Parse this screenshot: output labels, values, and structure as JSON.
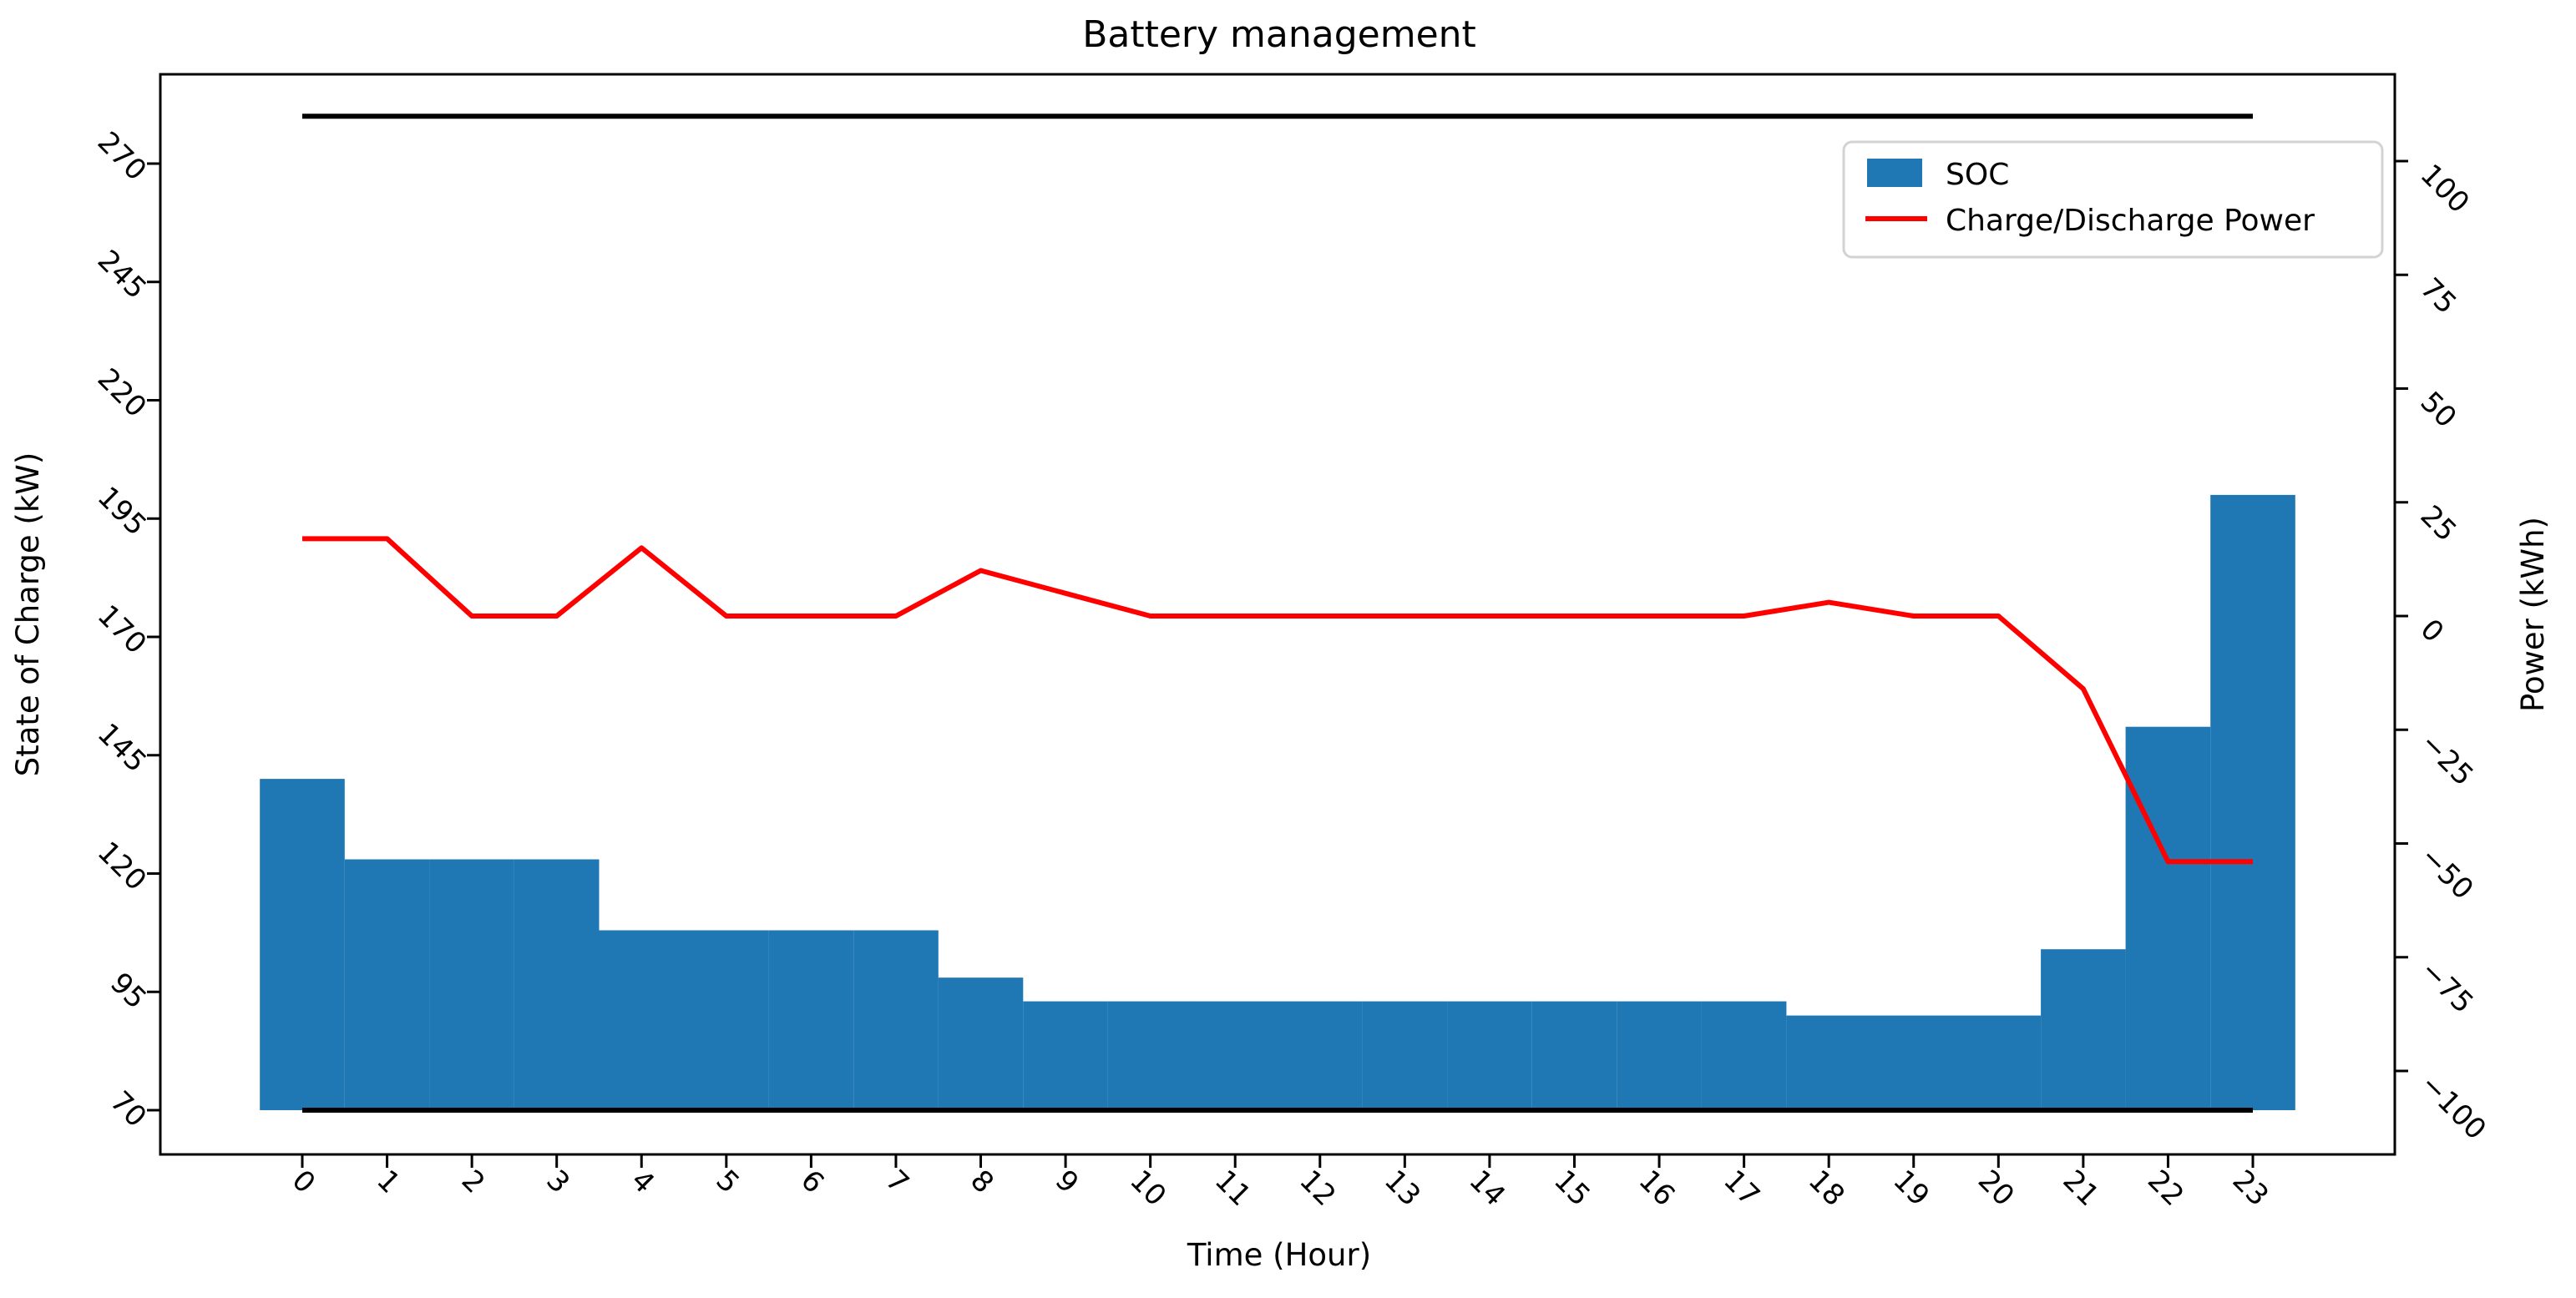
{
  "title": "Battery management",
  "x_axis": {
    "label": "Time (Hour)",
    "tick_labels": [
      "0",
      "1",
      "2",
      "3",
      "4",
      "5",
      "6",
      "7",
      "8",
      "9",
      "10",
      "11",
      "12",
      "13",
      "14",
      "15",
      "16",
      "17",
      "18",
      "19",
      "20",
      "21",
      "22",
      "23"
    ]
  },
  "y_axis_left": {
    "label": "State of Charge (kW)",
    "tick_labels": [
      "70",
      "95",
      "120",
      "145",
      "170",
      "195",
      "220",
      "245",
      "270"
    ],
    "tick_values": [
      70,
      95,
      120,
      145,
      170,
      195,
      220,
      245,
      270
    ]
  },
  "y_axis_right": {
    "label": "Power (kWh)",
    "tick_labels": [
      "100",
      "75",
      "50",
      "25",
      "0",
      "−25",
      "−50",
      "−75",
      "−100"
    ],
    "tick_values": [
      100,
      75,
      50,
      25,
      0,
      -25,
      -50,
      -75,
      -100
    ]
  },
  "legend": {
    "entries": [
      {
        "label": "SOC",
        "type": "patch",
        "color": "#1f77b4"
      },
      {
        "label": "Charge/Discharge Power",
        "type": "line",
        "color": "#ff0000"
      }
    ]
  },
  "colors": {
    "bar": "#1f77b4",
    "line": "#ff0000",
    "limit_line": "#000000",
    "frame": "#000000",
    "legend_border": "#d3d3d3",
    "background": "#ffffff"
  },
  "chart_data": {
    "type": "bar",
    "subtype": "bar+line combo, dual y-axis",
    "title": "Battery management",
    "xlabel": "Time (Hour)",
    "ylabel_left": "State of Charge (kW)",
    "ylabel_right": "Power (kWh)",
    "x": [
      0,
      1,
      2,
      3,
      4,
      5,
      6,
      7,
      8,
      9,
      10,
      11,
      12,
      13,
      14,
      15,
      16,
      17,
      18,
      19,
      20,
      21,
      22,
      23
    ],
    "series": [
      {
        "name": "SOC",
        "type": "bar",
        "axis": "left",
        "color": "#1f77b4",
        "baseline": 70,
        "values": [
          140,
          123,
          123,
          123,
          108,
          108,
          108,
          108,
          98,
          93,
          93,
          93,
          93,
          93,
          93,
          93,
          93,
          93,
          90,
          90,
          90,
          104,
          151,
          200
        ]
      },
      {
        "name": "Charge/Discharge Power",
        "type": "line",
        "axis": "right",
        "color": "#ff0000",
        "values": [
          17,
          17,
          0,
          0,
          15,
          0,
          0,
          0,
          10,
          5,
          0,
          0,
          0,
          0,
          0,
          0,
          0,
          0,
          3,
          0,
          0,
          -16,
          -54,
          -54
        ]
      }
    ],
    "reference_lines": [
      {
        "name": "soc-upper-limit",
        "axis": "left",
        "value": 280,
        "x_span": [
          0,
          23
        ],
        "color": "#000000"
      },
      {
        "name": "soc-lower-limit",
        "axis": "left",
        "value": 70,
        "x_span": [
          0,
          23
        ],
        "color": "#000000"
      }
    ],
    "left_tick_range": [
      70,
      270
    ],
    "right_tick_range": [
      -100,
      100
    ],
    "grid": false,
    "legend_position": "upper right",
    "tick_label_rotation_deg": 45
  }
}
